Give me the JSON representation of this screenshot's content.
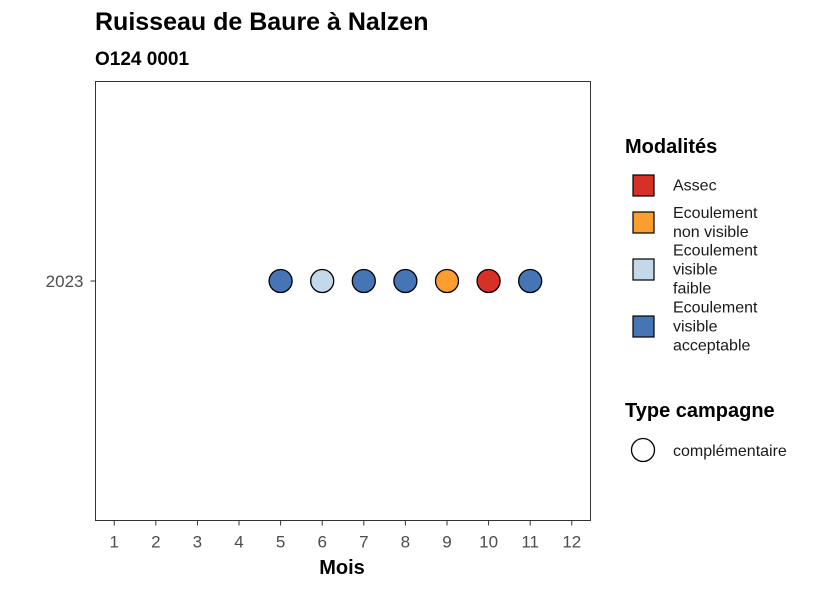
{
  "chart_data": {
    "type": "scatter",
    "title": "Ruisseau de Baure à Nalzen",
    "subtitle": "O124 0001",
    "xlabel": "Mois",
    "ylabel": "",
    "x_ticks": [
      1,
      2,
      3,
      4,
      5,
      6,
      7,
      8,
      9,
      10,
      11,
      12
    ],
    "xlim": [
      0.55,
      12.45
    ],
    "y_categories": [
      "2023"
    ],
    "points": [
      {
        "x": 5,
        "y": "2023",
        "modalite": "Ecoulement visible acceptable"
      },
      {
        "x": 6,
        "y": "2023",
        "modalite": "Ecoulement visible faible"
      },
      {
        "x": 7,
        "y": "2023",
        "modalite": "Ecoulement visible acceptable"
      },
      {
        "x": 8,
        "y": "2023",
        "modalite": "Ecoulement visible acceptable"
      },
      {
        "x": 9,
        "y": "2023",
        "modalite": "Ecoulement non visible"
      },
      {
        "x": 10,
        "y": "2023",
        "modalite": "Assec"
      },
      {
        "x": 11,
        "y": "2023",
        "modalite": "Ecoulement visible acceptable"
      }
    ],
    "legend": {
      "placement": "right",
      "fill_title": "Modalités",
      "fill_entries": [
        {
          "key": "Assec",
          "lines": [
            "Assec"
          ],
          "color": "#d73027"
        },
        {
          "key": "Ecoulement non visible",
          "lines": [
            "Ecoulement",
            "non visible"
          ],
          "color": "#fc9d31"
        },
        {
          "key": "Ecoulement visible faible",
          "lines": [
            "Ecoulement",
            "visible",
            "faible"
          ],
          "color": "#c3d9ea"
        },
        {
          "key": "Ecoulement visible acceptable",
          "lines": [
            "Ecoulement",
            "visible",
            "acceptable"
          ],
          "color": "#4575b4"
        }
      ],
      "shape_title": "Type campagne",
      "shape_entries": [
        {
          "label": "complémentaire",
          "shape": "circle"
        }
      ]
    }
  }
}
